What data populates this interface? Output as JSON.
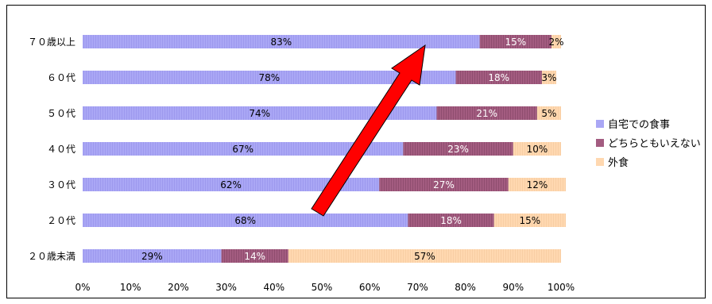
{
  "chart_data": {
    "type": "bar",
    "orientation": "horizontal",
    "stacked": true,
    "percent_axis": true,
    "categories": [
      "70歳以上",
      "60代",
      "50代",
      "40代",
      "30代",
      "20代",
      "20歳未満"
    ],
    "category_labels": [
      "７０歳以上",
      "６０代",
      "５０代",
      "４０代",
      "３０代",
      "２０代",
      "２０歳未満"
    ],
    "series": [
      {
        "name": "自宅での食事",
        "values": [
          83,
          78,
          74,
          67,
          62,
          68,
          29
        ],
        "labels": [
          "83%",
          "78%",
          "74%",
          "67%",
          "62%",
          "68%",
          "29%"
        ],
        "color": "#aaa7f5"
      },
      {
        "name": "どちらともいえない",
        "values": [
          15,
          18,
          21,
          23,
          27,
          18,
          14
        ],
        "labels": [
          "15%",
          "18%",
          "21%",
          "23%",
          "27%",
          "18%",
          "14%"
        ],
        "color": "#a35c80"
      },
      {
        "name": "外食",
        "values": [
          2,
          3,
          5,
          10,
          12,
          15,
          57
        ],
        "labels": [
          "2%",
          "3%",
          "5%",
          "10%",
          "12%",
          "15%",
          "57%"
        ],
        "color": "#ffd8b0"
      }
    ],
    "xlim": [
      0,
      100
    ],
    "xticks": [
      "0%",
      "10%",
      "20%",
      "30%",
      "40%",
      "50%",
      "60%",
      "70%",
      "80%",
      "90%",
      "100%"
    ],
    "legend": "right",
    "grid": false,
    "annotations": [
      {
        "type": "arrow",
        "color": "#ff0000",
        "direction": "up-right"
      }
    ]
  }
}
